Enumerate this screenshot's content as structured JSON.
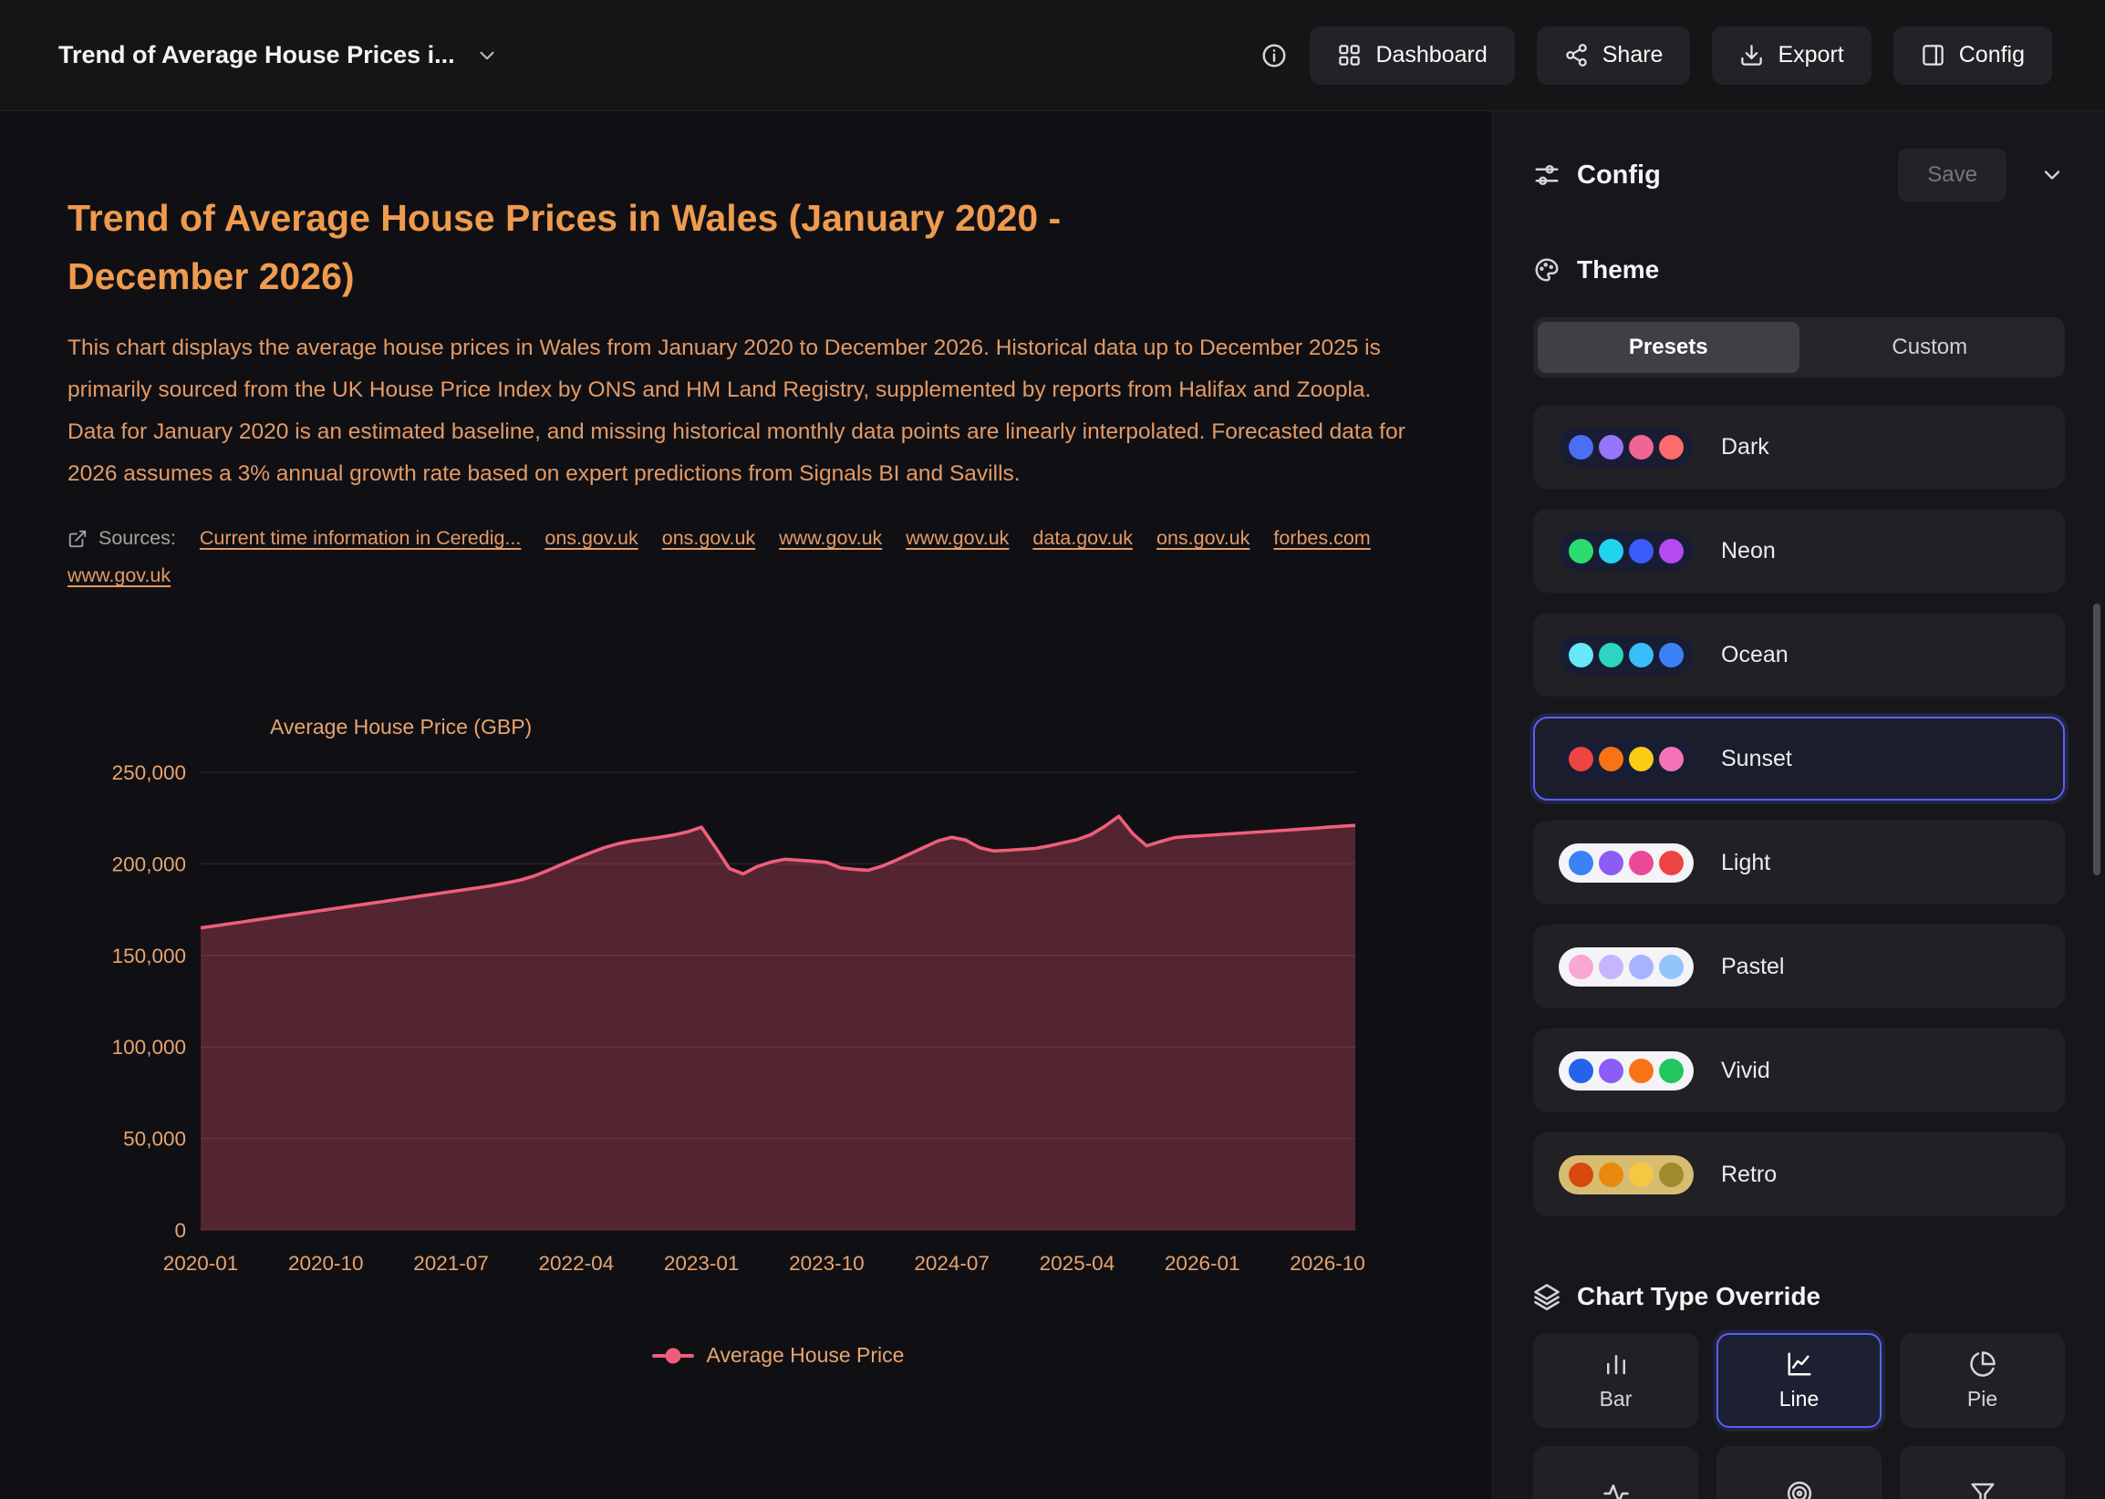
{
  "header": {
    "title": "Trend of Average House Prices i...",
    "buttons": {
      "dashboard": "Dashboard",
      "share": "Share",
      "export": "Export",
      "config": "Config"
    }
  },
  "main": {
    "title": "Trend of Average House Prices in Wales (January 2020 - December 2026)",
    "description": "This chart displays the average house prices in Wales from January 2020 to December 2026. Historical data up to December 2025 is primarily sourced from the UK House Price Index by ONS and HM Land Registry, supplemented by reports from Halifax and Zoopla. Data for January 2020 is an estimated baseline, and missing historical monthly data points are linearly interpolated. Forecasted data for 2026 assumes a 3% annual growth rate based on expert predictions from Signals BI and Savills.",
    "sources_label": "Sources:",
    "sources": [
      "Current time information in Ceredig...",
      "ons.gov.uk",
      "ons.gov.uk",
      "www.gov.uk",
      "www.gov.uk",
      "data.gov.uk",
      "ons.gov.uk",
      "forbes.com",
      "www.gov.uk"
    ]
  },
  "chart_data": {
    "type": "area",
    "ylabel": "Average House Price (GBP)",
    "ylim": [
      0,
      250000
    ],
    "yticks": [
      0,
      50000,
      100000,
      150000,
      200000,
      250000
    ],
    "x_range": {
      "start": "2020-01",
      "end": "2026-12",
      "step": "month"
    },
    "xticks": [
      "2020-01",
      "2020-10",
      "2021-07",
      "2022-04",
      "2023-01",
      "2023-10",
      "2024-07",
      "2025-04",
      "2026-01",
      "2026-10"
    ],
    "xtick_indices": [
      0,
      9,
      18,
      27,
      36,
      45,
      54,
      63,
      72,
      81
    ],
    "grid": true,
    "legend_position": "bottom",
    "line_color": "#ef5f7a",
    "fill_color": "rgba(228,84,110,0.32)",
    "grid_color": "rgba(232,93,117,0.18)",
    "series": [
      {
        "name": "Average House Price",
        "values": [
          165000,
          166100,
          167200,
          168300,
          169400,
          170500,
          171600,
          172700,
          173800,
          174900,
          176000,
          177100,
          178200,
          179300,
          180400,
          181500,
          182600,
          183700,
          184800,
          185900,
          187000,
          188200,
          189600,
          191200,
          193500,
          196500,
          199800,
          203000,
          206000,
          208800,
          211000,
          212500,
          213500,
          214500,
          215800,
          217500,
          220000,
          209000,
          197500,
          194500,
          198500,
          201000,
          202500,
          202000,
          201500,
          200800,
          197800,
          197000,
          196500,
          198800,
          202000,
          205500,
          209000,
          212500,
          214500,
          213000,
          208800,
          207000,
          207400,
          207900,
          208400,
          209800,
          211500,
          213200,
          216000,
          220500,
          226000,
          216500,
          209800,
          212200,
          214300,
          215000,
          215400,
          215900,
          216400,
          216900,
          217400,
          217900,
          218400,
          218900,
          219400,
          220000,
          220500,
          221000
        ]
      }
    ]
  },
  "config_panel": {
    "title": "Config",
    "save_label": "Save",
    "theme": {
      "title": "Theme",
      "tabs": [
        "Presets",
        "Custom"
      ],
      "active_tab": "Presets",
      "presets": [
        {
          "label": "Dark",
          "selected": false,
          "pill_bg": "#191d33",
          "dots": [
            "#4c6ef5",
            "#9775fa",
            "#f06595",
            "#ff6b6b"
          ]
        },
        {
          "label": "Neon",
          "selected": false,
          "pill_bg": "#191d33",
          "dots": [
            "#2bdc6e",
            "#22d3ee",
            "#3b5bfd",
            "#b44bf2"
          ]
        },
        {
          "label": "Ocean",
          "selected": false,
          "pill_bg": "#191d33",
          "dots": [
            "#67e8f9",
            "#2dd4bf",
            "#38bdf8",
            "#3b82f6"
          ]
        },
        {
          "label": "Sunset",
          "selected": true,
          "pill_bg": "#191d33",
          "dots": [
            "#ef4444",
            "#f97316",
            "#facc15",
            "#f472b6"
          ]
        },
        {
          "label": "Light",
          "selected": false,
          "pill_bg": "#f4f4f6",
          "dots": [
            "#3b82f6",
            "#8b5cf6",
            "#ec4899",
            "#ef4444"
          ]
        },
        {
          "label": "Pastel",
          "selected": false,
          "pill_bg": "#f4f4f6",
          "dots": [
            "#f9a8d4",
            "#c4b5fd",
            "#a5b4fc",
            "#93c5fd"
          ]
        },
        {
          "label": "Vivid",
          "selected": false,
          "pill_bg": "#f4f4f6",
          "dots": [
            "#2563eb",
            "#8b5cf6",
            "#f97316",
            "#22c55e"
          ]
        },
        {
          "label": "Retro",
          "selected": false,
          "pill_bg": "#d8bc72",
          "dots": [
            "#d9480f",
            "#e8890c",
            "#f5c842",
            "#a08a2e"
          ]
        }
      ]
    },
    "chart_type": {
      "title": "Chart Type Override",
      "options": [
        {
          "label": "Bar",
          "icon": "bar",
          "selected": false
        },
        {
          "label": "Line",
          "icon": "line",
          "selected": true
        },
        {
          "label": "Pie",
          "icon": "pie",
          "selected": false
        }
      ],
      "extra_options": [
        {
          "icon": "activity"
        },
        {
          "icon": "radial"
        },
        {
          "icon": "funnel"
        }
      ]
    }
  }
}
